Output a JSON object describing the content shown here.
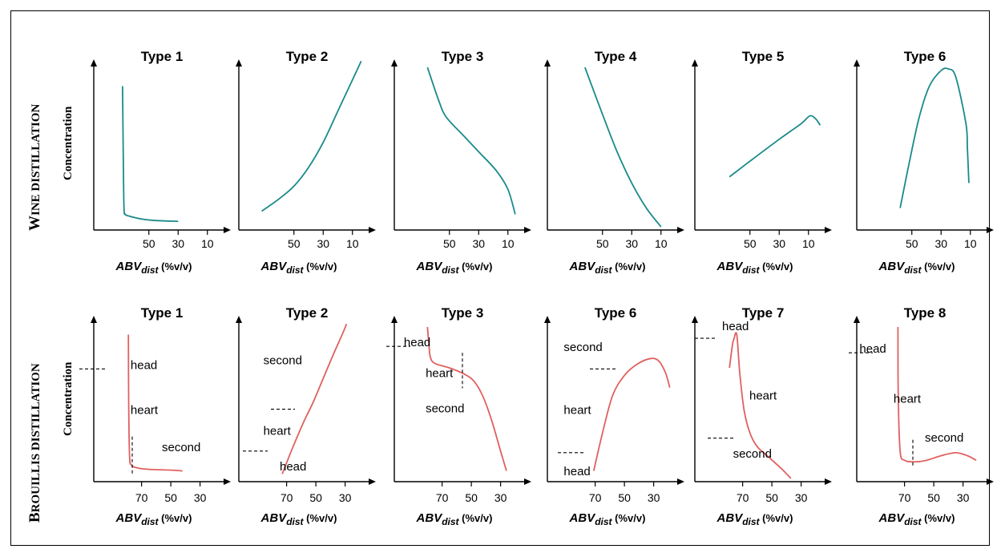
{
  "rows": [
    {
      "label_big": "W",
      "label_small": "INE DISTILLATION",
      "ylabel": "Concentration",
      "color": "#1a8a8a",
      "charts": [
        {
          "title": "Type 1",
          "xticks": [
            50,
            30,
            10
          ],
          "xlabel_main": "ABV",
          "xlabel_sub": "dist",
          "xlabel_unit": " (%v/v)",
          "curve": [
            [
              68,
              10
            ],
            [
              67.5,
              55
            ],
            [
              67,
              88
            ],
            [
              66,
              92
            ],
            [
              64,
              93
            ],
            [
              55,
              95
            ],
            [
              45,
              96
            ],
            [
              30,
              96.5
            ]
          ],
          "annotations": []
        },
        {
          "title": "Type 2",
          "xticks": [
            50,
            30,
            10
          ],
          "xlabel_main": "ABV",
          "xlabel_sub": "dist",
          "xlabel_unit": " (%v/v)",
          "curve": [
            [
              72,
              90
            ],
            [
              60,
              82
            ],
            [
              50,
              74
            ],
            [
              40,
              62
            ],
            [
              30,
              46
            ],
            [
              20,
              26
            ],
            [
              10,
              6
            ],
            [
              4,
              -6
            ]
          ],
          "annotations": []
        },
        {
          "title": "Type 3",
          "xticks": [
            50,
            30,
            10
          ],
          "xlabel_main": "ABV",
          "xlabel_sub": "dist",
          "xlabel_unit": " (%v/v)",
          "curve": [
            [
              65,
              -2
            ],
            [
              57,
              20
            ],
            [
              52,
              30
            ],
            [
              40,
              42
            ],
            [
              30,
              52
            ],
            [
              18,
              64
            ],
            [
              10,
              76
            ],
            [
              5,
              92
            ]
          ],
          "annotations": []
        },
        {
          "title": "Type 4",
          "xticks": [
            50,
            30,
            10
          ],
          "xlabel_main": "ABV",
          "xlabel_sub": "dist",
          "xlabel_unit": " (%v/v)",
          "curve": [
            [
              62,
              -2
            ],
            [
              50,
              28
            ],
            [
              40,
              52
            ],
            [
              30,
              72
            ],
            [
              20,
              88
            ],
            [
              10,
              100
            ]
          ],
          "annotations": []
        },
        {
          "title": "Type 5",
          "xticks": [
            50,
            30,
            10
          ],
          "xlabel_main": "ABV",
          "xlabel_sub": "dist",
          "xlabel_unit": " (%v/v)",
          "curve": [
            [
              64,
              68
            ],
            [
              50,
              58
            ],
            [
              30,
              44
            ],
            [
              15,
              34
            ],
            [
              9,
              29
            ],
            [
              5,
              31
            ],
            [
              2,
              35
            ]
          ],
          "annotations": []
        },
        {
          "title": "Type 6",
          "xticks": [
            50,
            30,
            10
          ],
          "xlabel_main": "ABV",
          "xlabel_sub": "dist",
          "xlabel_unit": " (%v/v)",
          "curve": [
            [
              58,
              88
            ],
            [
              52,
              60
            ],
            [
              45,
              30
            ],
            [
              38,
              10
            ],
            [
              30,
              0
            ],
            [
              25,
              -1
            ],
            [
              20,
              4
            ],
            [
              13,
              34
            ],
            [
              12,
              50
            ],
            [
              11,
              72
            ]
          ],
          "annotations": []
        }
      ]
    },
    {
      "label_big": "B",
      "label_small": "ROUILLIS DISTILLATION",
      "ylabel": "Concentration",
      "color": "#e06060",
      "charts": [
        {
          "title": "Type 1",
          "xticks": [
            70,
            50,
            30
          ],
          "xlabel_main": "ABV",
          "xlabel_sub": "dist",
          "xlabel_unit": " (%v/v)",
          "curve": [
            [
              79,
              5
            ],
            [
              78.8,
              50
            ],
            [
              78.2,
              85
            ],
            [
              77,
              91
            ],
            [
              73,
              93
            ],
            [
              65,
              94
            ],
            [
              50,
              94.5
            ],
            [
              42,
              95
            ]
          ],
          "annotations": [
            {
              "text": "head",
              "x": 73,
              "y": 30
            },
            {
              "text": "heart",
              "x": 73,
              "y": 58
            },
            {
              "text": "second",
              "x": 50,
              "y": 81
            }
          ]
        },
        {
          "title": "Type 2",
          "xticks": [
            70,
            50,
            30
          ],
          "xlabel_main": "ABV",
          "xlabel_sub": "dist",
          "xlabel_unit": " (%v/v)",
          "curve": [
            [
              73,
              97
            ],
            [
              66,
              80
            ],
            [
              58,
              62
            ],
            [
              52,
              50
            ],
            [
              45,
              34
            ],
            [
              38,
              18
            ],
            [
              32,
              5
            ],
            [
              29,
              -2
            ]
          ],
          "annotations": [
            {
              "text": "second",
              "x": 82,
              "y": 27
            },
            {
              "text": "heart",
              "x": 82,
              "y": 71
            },
            {
              "text": "head",
              "x": 70,
              "y": 93
            }
          ]
        },
        {
          "title": "Type 3",
          "xticks": [
            70,
            50,
            30
          ],
          "xlabel_main": "ABV",
          "xlabel_sub": "dist",
          "xlabel_unit": " (%v/v)",
          "curve": [
            [
              80,
              0
            ],
            [
              79,
              12
            ],
            [
              78,
              20
            ],
            [
              75,
              24
            ],
            [
              65,
              27
            ],
            [
              55,
              31
            ],
            [
              48,
              36
            ],
            [
              42,
              46
            ],
            [
              36,
              62
            ],
            [
              30,
              82
            ],
            [
              26,
              95
            ]
          ],
          "annotations": [
            {
              "text": "head",
              "x": 93,
              "y": 16
            },
            {
              "text": "heart",
              "x": 77,
              "y": 35
            },
            {
              "text": "second",
              "x": 77,
              "y": 57
            }
          ]
        },
        {
          "title": "Type 6",
          "xticks": [
            70,
            50,
            30
          ],
          "xlabel_main": "ABV",
          "xlabel_sub": "dist",
          "xlabel_unit": " (%v/v)",
          "curve": [
            [
              71,
              95
            ],
            [
              65,
              70
            ],
            [
              58,
              45
            ],
            [
              50,
              32
            ],
            [
              42,
              25
            ],
            [
              33,
              21
            ],
            [
              27,
              22
            ],
            [
              22,
              30
            ],
            [
              19,
              40
            ]
          ],
          "annotations": [
            {
              "text": "second",
              "x": 88,
              "y": 19
            },
            {
              "text": "heart",
              "x": 88,
              "y": 58
            },
            {
              "text": "head",
              "x": 88,
              "y": 96
            }
          ]
        },
        {
          "title": "Type 7",
          "xticks": [
            70,
            50,
            30
          ],
          "xlabel_main": "ABV",
          "xlabel_sub": "dist",
          "xlabel_unit": " (%v/v)",
          "curve": [
            [
              79,
              27
            ],
            [
              77,
              12
            ],
            [
              76,
              8
            ],
            [
              74,
              5
            ],
            [
              72,
              30
            ],
            [
              69,
              55
            ],
            [
              65,
              70
            ],
            [
              60,
              79
            ],
            [
              52,
              86
            ],
            [
              43,
              94
            ],
            [
              37,
              100
            ]
          ],
          "annotations": [
            {
              "text": "head",
              "x": 80,
              "y": 6
            },
            {
              "text": "heart",
              "x": 60,
              "y": 49
            },
            {
              "text": "second",
              "x": 72,
              "y": 85
            }
          ]
        },
        {
          "title": "Type 8",
          "xticks": [
            70,
            50,
            30
          ],
          "xlabel_main": "ABV",
          "xlabel_sub": "dist",
          "xlabel_unit": " (%v/v)",
          "curve": [
            [
              74.5,
              0
            ],
            [
              74.3,
              45
            ],
            [
              73,
              82
            ],
            [
              70,
              88
            ],
            [
              63,
              89
            ],
            [
              55,
              88
            ],
            [
              45,
              85
            ],
            [
              35,
              83
            ],
            [
              27,
              85
            ],
            [
              21,
              88
            ]
          ],
          "annotations": [
            {
              "text": "head",
              "x": 98,
              "y": 20
            },
            {
              "text": "heart",
              "x": 73,
              "y": 51
            },
            {
              "text": "second",
              "x": 50,
              "y": 75
            }
          ]
        }
      ]
    }
  ]
}
